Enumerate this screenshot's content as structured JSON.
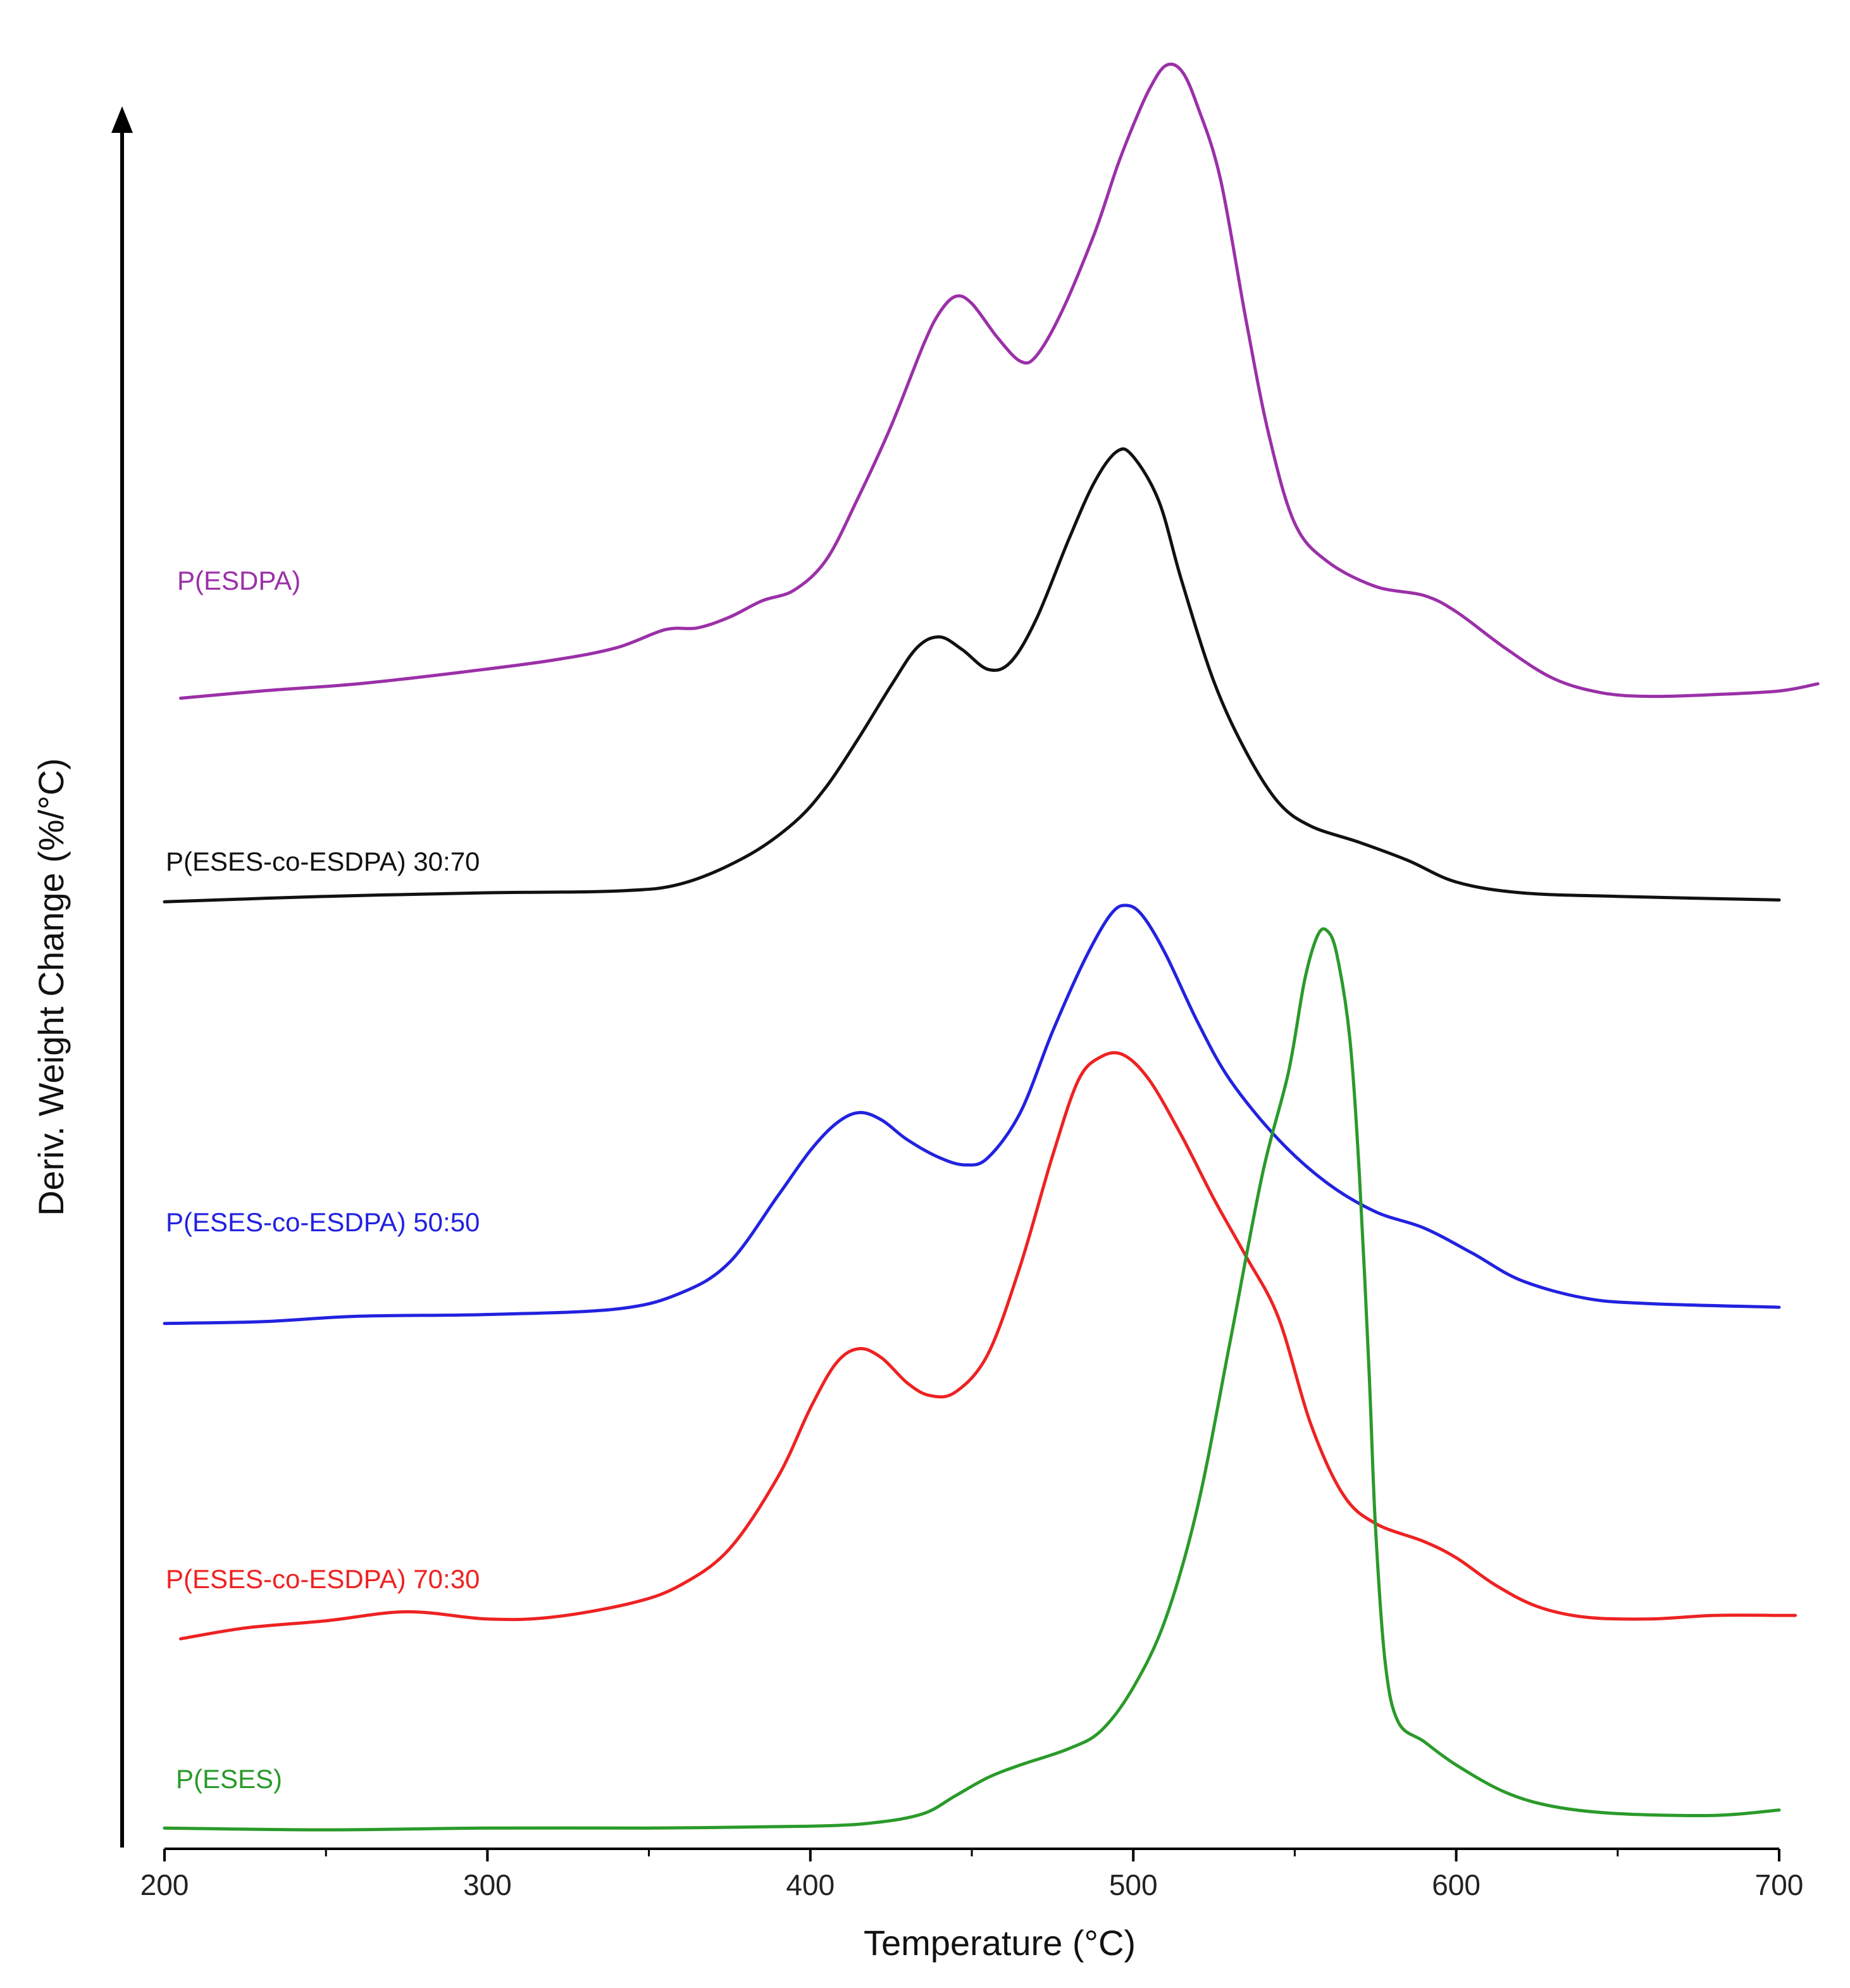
{
  "chart_data": {
    "type": "line",
    "title": "",
    "xlabel": "Temperature (°C)",
    "ylabel": "Deriv. Weight Change (%/°C)",
    "xlim": [
      200,
      700
    ],
    "ylim": [
      0,
      100
    ],
    "x_ticks": [
      200,
      300,
      400,
      500,
      600,
      700
    ],
    "grid": false,
    "legend": "inline labels at left of each curve",
    "series": [
      {
        "name": "P(ESDPA)",
        "label": "P(ESDPA)",
        "color": "#9b30a8",
        "points": [
          [
            205,
            62.8
          ],
          [
            230,
            63.2
          ],
          [
            260,
            63.6
          ],
          [
            290,
            64.2
          ],
          [
            320,
            64.9
          ],
          [
            340,
            65.6
          ],
          [
            355,
            66.6
          ],
          [
            365,
            66.7
          ],
          [
            375,
            67.3
          ],
          [
            385,
            68.2
          ],
          [
            395,
            68.8
          ],
          [
            405,
            70.5
          ],
          [
            415,
            74.0
          ],
          [
            425,
            77.9
          ],
          [
            435,
            82.4
          ],
          [
            440,
            84.2
          ],
          [
            445,
            85.1
          ],
          [
            450,
            84.7
          ],
          [
            458,
            82.8
          ],
          [
            465,
            81.5
          ],
          [
            470,
            81.8
          ],
          [
            478,
            84.3
          ],
          [
            488,
            88.6
          ],
          [
            495,
            92.3
          ],
          [
            500,
            94.6
          ],
          [
            505,
            96.6
          ],
          [
            510,
            97.9
          ],
          [
            515,
            97.6
          ],
          [
            520,
            95.6
          ],
          [
            527,
            91.6
          ],
          [
            535,
            83.7
          ],
          [
            542,
            77.4
          ],
          [
            550,
            72.5
          ],
          [
            560,
            70.4
          ],
          [
            575,
            69.0
          ],
          [
            590,
            68.5
          ],
          [
            600,
            67.6
          ],
          [
            615,
            65.6
          ],
          [
            630,
            63.9
          ],
          [
            645,
            63.1
          ],
          [
            660,
            62.9
          ],
          [
            680,
            63.0
          ],
          [
            700,
            63.2
          ],
          [
            712,
            63.6
          ]
        ]
      },
      {
        "name": "P(ESES-co-ESDPA) 30:70",
        "label": "P(ESES-co-ESDPA) 30:70",
        "color": "#111111",
        "points": [
          [
            200,
            51.5
          ],
          [
            250,
            51.8
          ],
          [
            300,
            52.0
          ],
          [
            340,
            52.1
          ],
          [
            360,
            52.5
          ],
          [
            380,
            54.0
          ],
          [
            395,
            55.9
          ],
          [
            405,
            57.9
          ],
          [
            415,
            60.6
          ],
          [
            425,
            63.5
          ],
          [
            433,
            65.6
          ],
          [
            440,
            66.2
          ],
          [
            447,
            65.5
          ],
          [
            455,
            64.4
          ],
          [
            462,
            64.8
          ],
          [
            470,
            67.2
          ],
          [
            480,
            71.6
          ],
          [
            488,
            74.8
          ],
          [
            495,
            76.5
          ],
          [
            500,
            76.2
          ],
          [
            508,
            73.7
          ],
          [
            515,
            69.3
          ],
          [
            525,
            63.7
          ],
          [
            535,
            59.8
          ],
          [
            545,
            57.0
          ],
          [
            555,
            55.7
          ],
          [
            570,
            54.8
          ],
          [
            585,
            53.8
          ],
          [
            600,
            52.6
          ],
          [
            620,
            52.0
          ],
          [
            650,
            51.8
          ],
          [
            700,
            51.6
          ]
        ]
      },
      {
        "name": "P(ESES-co-ESDPA) 50:50",
        "label": "P(ESES-co-ESDPA) 50:50",
        "color": "#2222e0",
        "points": [
          [
            200,
            28.1
          ],
          [
            230,
            28.2
          ],
          [
            260,
            28.5
          ],
          [
            300,
            28.6
          ],
          [
            340,
            28.9
          ],
          [
            360,
            29.8
          ],
          [
            375,
            31.5
          ],
          [
            390,
            35.2
          ],
          [
            400,
            37.7
          ],
          [
            408,
            39.2
          ],
          [
            415,
            39.8
          ],
          [
            422,
            39.4
          ],
          [
            430,
            38.3
          ],
          [
            440,
            37.3
          ],
          [
            448,
            36.9
          ],
          [
            455,
            37.3
          ],
          [
            465,
            39.8
          ],
          [
            475,
            44.3
          ],
          [
            485,
            48.3
          ],
          [
            493,
            50.8
          ],
          [
            498,
            51.3
          ],
          [
            503,
            50.7
          ],
          [
            510,
            48.6
          ],
          [
            520,
            44.8
          ],
          [
            530,
            41.6
          ],
          [
            545,
            38.3
          ],
          [
            560,
            35.9
          ],
          [
            575,
            34.3
          ],
          [
            590,
            33.4
          ],
          [
            605,
            32.0
          ],
          [
            620,
            30.5
          ],
          [
            640,
            29.5
          ],
          [
            660,
            29.2
          ],
          [
            700,
            29.0
          ]
        ]
      },
      {
        "name": "P(ESES-co-ESDPA) 70:30",
        "label": "P(ESES-co-ESDPA) 70:30",
        "color": "#ee2222",
        "points": [
          [
            205,
            10.6
          ],
          [
            225,
            11.2
          ],
          [
            250,
            11.6
          ],
          [
            275,
            12.1
          ],
          [
            300,
            11.7
          ],
          [
            320,
            11.8
          ],
          [
            345,
            12.6
          ],
          [
            360,
            13.6
          ],
          [
            375,
            15.6
          ],
          [
            390,
            19.6
          ],
          [
            400,
            23.4
          ],
          [
            408,
            25.9
          ],
          [
            415,
            26.7
          ],
          [
            422,
            26.2
          ],
          [
            430,
            24.8
          ],
          [
            437,
            24.1
          ],
          [
            445,
            24.3
          ],
          [
            455,
            26.4
          ],
          [
            465,
            31.3
          ],
          [
            475,
            37.4
          ],
          [
            483,
            41.6
          ],
          [
            490,
            42.9
          ],
          [
            497,
            43.0
          ],
          [
            505,
            41.6
          ],
          [
            515,
            38.5
          ],
          [
            525,
            35.0
          ],
          [
            535,
            31.8
          ],
          [
            545,
            28.4
          ],
          [
            555,
            22.5
          ],
          [
            565,
            18.6
          ],
          [
            575,
            17.0
          ],
          [
            590,
            16.0
          ],
          [
            600,
            15.1
          ],
          [
            612,
            13.6
          ],
          [
            625,
            12.4
          ],
          [
            640,
            11.8
          ],
          [
            660,
            11.7
          ],
          [
            680,
            11.9
          ],
          [
            700,
            11.9
          ],
          [
            705,
            11.9
          ]
        ]
      },
      {
        "name": "P(ESES)",
        "label": "P(ESES)",
        "color": "#2a9a2a",
        "points": [
          [
            200,
            0.1
          ],
          [
            250,
            0.0
          ],
          [
            300,
            0.1
          ],
          [
            350,
            0.1
          ],
          [
            400,
            0.2
          ],
          [
            420,
            0.4
          ],
          [
            435,
            0.9
          ],
          [
            445,
            1.9
          ],
          [
            455,
            2.9
          ],
          [
            465,
            3.6
          ],
          [
            480,
            4.5
          ],
          [
            490,
            5.5
          ],
          [
            500,
            7.9
          ],
          [
            510,
            11.7
          ],
          [
            520,
            18.0
          ],
          [
            530,
            27.1
          ],
          [
            540,
            36.4
          ],
          [
            548,
            42.0
          ],
          [
            553,
            47.1
          ],
          [
            557,
            49.6
          ],
          [
            560,
            49.9
          ],
          [
            563,
            48.6
          ],
          [
            567,
            44.0
          ],
          [
            570,
            36.4
          ],
          [
            573,
            25.5
          ],
          [
            575,
            16.8
          ],
          [
            578,
            9.3
          ],
          [
            582,
            6.0
          ],
          [
            590,
            4.9
          ],
          [
            600,
            3.6
          ],
          [
            615,
            2.1
          ],
          [
            630,
            1.3
          ],
          [
            650,
            0.9
          ],
          [
            680,
            0.8
          ],
          [
            700,
            1.1
          ]
        ]
      }
    ]
  }
}
